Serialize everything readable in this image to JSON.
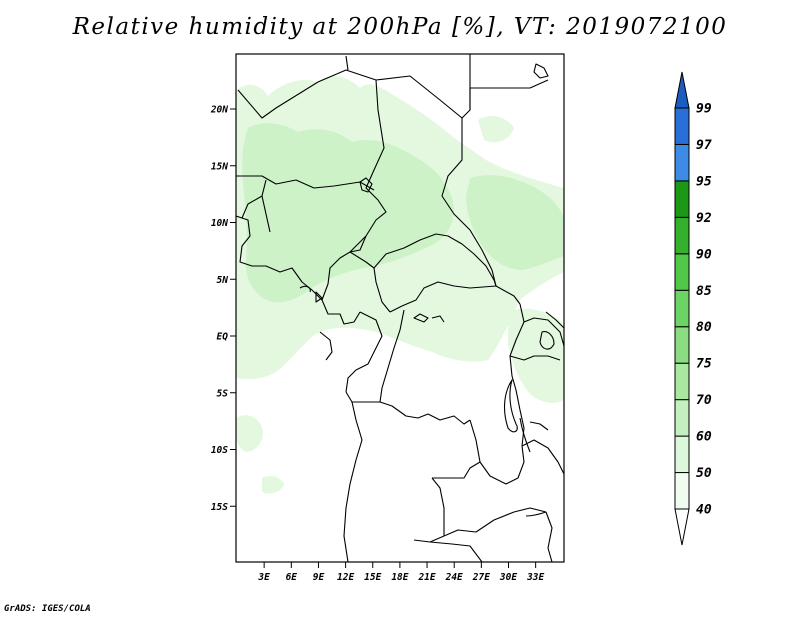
{
  "title": "Relative humidity at 200hPa [%], VT: 2019072100",
  "credit": "GrADS: IGES/COLA",
  "lat_ticks": [
    {
      "label": "20N",
      "lat": 20
    },
    {
      "label": "15N",
      "lat": 15
    },
    {
      "label": "10N",
      "lat": 10
    },
    {
      "label": "5N",
      "lat": 5
    },
    {
      "label": "EQ",
      "lat": 0
    },
    {
      "label": "5S",
      "lat": -5
    },
    {
      "label": "10S",
      "lat": -10
    },
    {
      "label": "15S",
      "lat": -15
    }
  ],
  "lon_ticks": [
    {
      "label": "3E",
      "lon": 3
    },
    {
      "label": "6E",
      "lon": 6
    },
    {
      "label": "9E",
      "lon": 9
    },
    {
      "label": "12E",
      "lon": 12
    },
    {
      "label": "15E",
      "lon": 15
    },
    {
      "label": "18E",
      "lon": 18
    },
    {
      "label": "21E",
      "lon": 21
    },
    {
      "label": "24E",
      "lon": 24
    },
    {
      "label": "27E",
      "lon": 27
    },
    {
      "label": "30E",
      "lon": 30
    },
    {
      "label": "33E",
      "lon": 33
    }
  ],
  "colorbar": {
    "levels": [
      "40",
      "50",
      "60",
      "70",
      "75",
      "80",
      "85",
      "90",
      "92",
      "95",
      "97",
      "99"
    ],
    "colors": [
      "#f0fcf0",
      "#dcf8dc",
      "#c4f0c0",
      "#a8e8a0",
      "#8cdc84",
      "#6cd464",
      "#50c848",
      "#34b02c",
      "#1c9816",
      "#3c8ce6",
      "#2870d8",
      "#1c5cc0"
    ]
  },
  "map_colors": {
    "background": "#ffffff",
    "humidity_light": "#e4f8e0",
    "humidity_medium": "#cdf2c8",
    "border": "#000000"
  }
}
